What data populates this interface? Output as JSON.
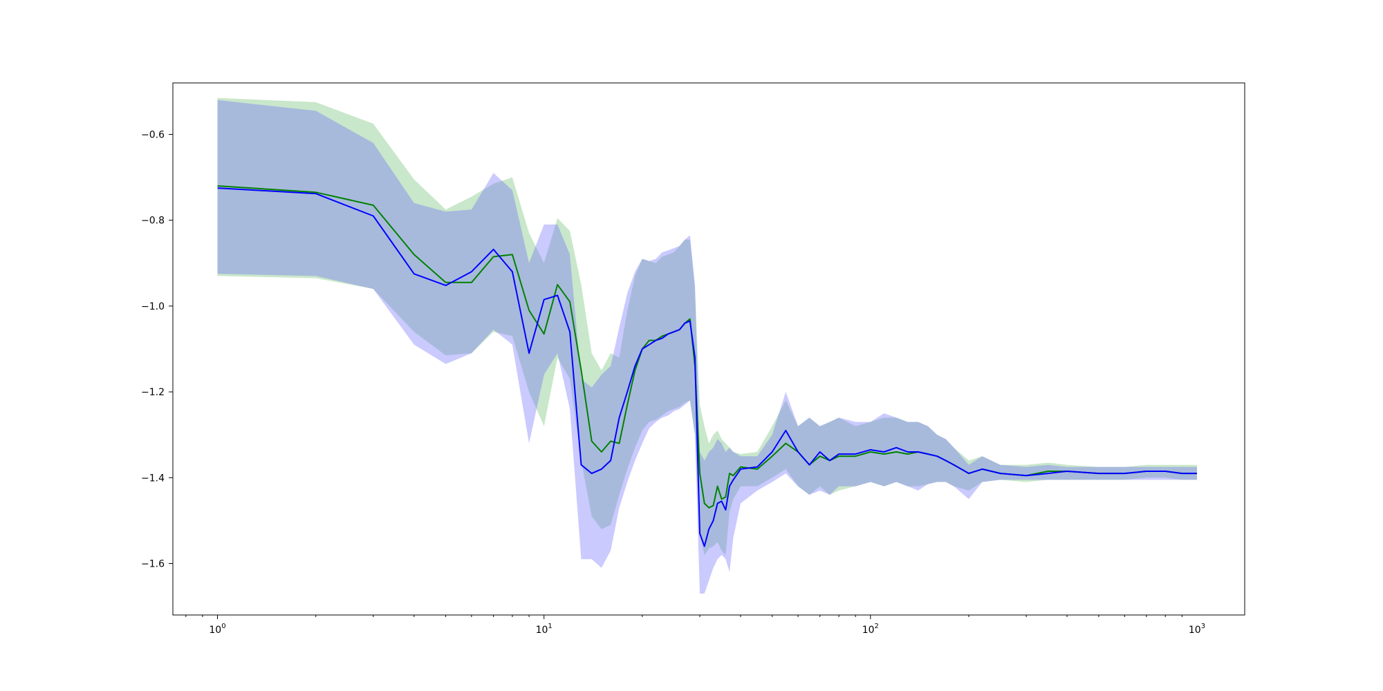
{
  "chart_data": {
    "type": "line",
    "title": "",
    "xlabel": "",
    "ylabel": "",
    "xscale": "log",
    "xlim": [
      0.73,
      1400
    ],
    "ylim": [
      -1.72,
      -0.48
    ],
    "grid": false,
    "legend": "none",
    "x_ticks": [
      {
        "value": 1,
        "base": "10",
        "exp": "0"
      },
      {
        "value": 10,
        "base": "10",
        "exp": "1"
      },
      {
        "value": 100,
        "base": "10",
        "exp": "2"
      },
      {
        "value": 1000,
        "base": "10",
        "exp": "3"
      }
    ],
    "y_ticks": [
      {
        "value": -0.6,
        "label": "−0.6"
      },
      {
        "value": -0.8,
        "label": "−0.8"
      },
      {
        "value": -1.0,
        "label": "−1.0"
      },
      {
        "value": -1.2,
        "label": "−1.2"
      },
      {
        "value": -1.4,
        "label": "−1.4"
      },
      {
        "value": -1.6,
        "label": "−1.6"
      }
    ],
    "series": [
      {
        "color": "#008000",
        "band_color": "#4caf50",
        "band_opacity": 0.3,
        "x": [
          1,
          2,
          3,
          4,
          5,
          6,
          7,
          8,
          9,
          10,
          11,
          12,
          13,
          14,
          15,
          16,
          17,
          18,
          19,
          20,
          21,
          22,
          23,
          24,
          25,
          26,
          27,
          28,
          29,
          30,
          31,
          32,
          33,
          34,
          35,
          36,
          37,
          38,
          40,
          45,
          50,
          55,
          60,
          65,
          70,
          75,
          80,
          90,
          100,
          110,
          120,
          130,
          140,
          150,
          160,
          170,
          180,
          200,
          220,
          250,
          300,
          350,
          400,
          500,
          600,
          700,
          800,
          900,
          1000
        ],
        "y": [
          -0.72,
          -0.735,
          -0.765,
          -0.88,
          -0.945,
          -0.945,
          -0.885,
          -0.88,
          -1.01,
          -1.065,
          -0.95,
          -0.99,
          -1.15,
          -1.315,
          -1.34,
          -1.315,
          -1.32,
          -1.23,
          -1.15,
          -1.1,
          -1.08,
          -1.08,
          -1.07,
          -1.065,
          -1.06,
          -1.055,
          -1.04,
          -1.03,
          -1.14,
          -1.39,
          -1.46,
          -1.47,
          -1.465,
          -1.42,
          -1.45,
          -1.445,
          -1.39,
          -1.395,
          -1.375,
          -1.38,
          -1.35,
          -1.32,
          -1.34,
          -1.37,
          -1.35,
          -1.36,
          -1.35,
          -1.35,
          -1.34,
          -1.345,
          -1.34,
          -1.345,
          -1.34,
          -1.345,
          -1.35,
          -1.36,
          -1.37,
          -1.39,
          -1.38,
          -1.39,
          -1.395,
          -1.385,
          -1.385,
          -1.39,
          -1.39,
          -1.385,
          -1.385,
          -1.39,
          -1.39
        ],
        "upper": [
          -0.515,
          -0.525,
          -0.575,
          -0.705,
          -0.775,
          -0.745,
          -0.715,
          -0.7,
          -0.83,
          -0.9,
          -0.795,
          -0.825,
          -0.95,
          -1.11,
          -1.15,
          -1.11,
          -1.12,
          -1.01,
          -0.93,
          -0.89,
          -0.895,
          -0.9,
          -0.885,
          -0.88,
          -0.875,
          -0.86,
          -0.845,
          -0.845,
          -0.96,
          -1.23,
          -1.28,
          -1.32,
          -1.3,
          -1.29,
          -1.31,
          -1.32,
          -1.33,
          -1.34,
          -1.345,
          -1.34,
          -1.28,
          -1.22,
          -1.28,
          -1.26,
          -1.28,
          -1.27,
          -1.26,
          -1.28,
          -1.27,
          -1.26,
          -1.26,
          -1.27,
          -1.27,
          -1.28,
          -1.3,
          -1.31,
          -1.33,
          -1.36,
          -1.35,
          -1.37,
          -1.37,
          -1.365,
          -1.37,
          -1.375,
          -1.375,
          -1.37,
          -1.37,
          -1.37,
          -1.37
        ],
        "lower": [
          -0.93,
          -0.935,
          -0.96,
          -1.06,
          -1.115,
          -1.11,
          -1.06,
          -1.07,
          -1.2,
          -1.28,
          -1.12,
          -1.17,
          -1.36,
          -1.49,
          -1.52,
          -1.51,
          -1.44,
          -1.38,
          -1.33,
          -1.29,
          -1.27,
          -1.265,
          -1.255,
          -1.245,
          -1.24,
          -1.235,
          -1.225,
          -1.22,
          -1.3,
          -1.53,
          -1.58,
          -1.565,
          -1.56,
          -1.55,
          -1.57,
          -1.58,
          -1.48,
          -1.45,
          -1.42,
          -1.42,
          -1.4,
          -1.38,
          -1.42,
          -1.44,
          -1.42,
          -1.44,
          -1.43,
          -1.42,
          -1.41,
          -1.42,
          -1.41,
          -1.42,
          -1.42,
          -1.415,
          -1.41,
          -1.41,
          -1.42,
          -1.43,
          -1.41,
          -1.405,
          -1.41,
          -1.405,
          -1.405,
          -1.405,
          -1.405,
          -1.4,
          -1.4,
          -1.405,
          -1.405
        ]
      },
      {
        "color": "#0000ff",
        "band_color": "#6666ff",
        "band_opacity": 0.35,
        "x": [
          1,
          2,
          3,
          4,
          5,
          6,
          7,
          8,
          9,
          10,
          11,
          12,
          13,
          14,
          15,
          16,
          17,
          18,
          19,
          20,
          21,
          22,
          23,
          24,
          25,
          26,
          27,
          28,
          29,
          30,
          31,
          32,
          33,
          34,
          35,
          36,
          37,
          38,
          40,
          45,
          50,
          55,
          60,
          65,
          70,
          75,
          80,
          90,
          100,
          110,
          120,
          130,
          140,
          150,
          160,
          170,
          180,
          200,
          220,
          250,
          300,
          350,
          400,
          500,
          600,
          700,
          800,
          900,
          1000
        ],
        "y": [
          -0.725,
          -0.738,
          -0.79,
          -0.925,
          -0.952,
          -0.92,
          -0.868,
          -0.92,
          -1.11,
          -0.985,
          -0.975,
          -1.06,
          -1.37,
          -1.39,
          -1.38,
          -1.36,
          -1.26,
          -1.2,
          -1.14,
          -1.1,
          -1.09,
          -1.08,
          -1.075,
          -1.065,
          -1.06,
          -1.055,
          -1.04,
          -1.035,
          -1.12,
          -1.53,
          -1.56,
          -1.52,
          -1.5,
          -1.46,
          -1.455,
          -1.475,
          -1.42,
          -1.405,
          -1.38,
          -1.375,
          -1.34,
          -1.29,
          -1.34,
          -1.37,
          -1.34,
          -1.36,
          -1.345,
          -1.345,
          -1.335,
          -1.34,
          -1.33,
          -1.34,
          -1.34,
          -1.345,
          -1.35,
          -1.36,
          -1.37,
          -1.39,
          -1.38,
          -1.39,
          -1.395,
          -1.39,
          -1.385,
          -1.39,
          -1.39,
          -1.385,
          -1.385,
          -1.39,
          -1.39
        ],
        "upper": [
          -0.52,
          -0.545,
          -0.62,
          -0.76,
          -0.78,
          -0.775,
          -0.69,
          -0.73,
          -0.9,
          -0.81,
          -0.81,
          -0.88,
          -1.17,
          -1.19,
          -1.16,
          -1.14,
          -1.05,
          -0.97,
          -0.92,
          -0.89,
          -0.895,
          -0.89,
          -0.875,
          -0.87,
          -0.865,
          -0.86,
          -0.845,
          -0.835,
          -0.95,
          -1.34,
          -1.36,
          -1.34,
          -1.33,
          -1.31,
          -1.32,
          -1.34,
          -1.33,
          -1.34,
          -1.35,
          -1.35,
          -1.3,
          -1.2,
          -1.28,
          -1.26,
          -1.28,
          -1.27,
          -1.26,
          -1.27,
          -1.27,
          -1.25,
          -1.26,
          -1.27,
          -1.27,
          -1.28,
          -1.3,
          -1.31,
          -1.33,
          -1.37,
          -1.35,
          -1.37,
          -1.375,
          -1.37,
          -1.375,
          -1.375,
          -1.375,
          -1.375,
          -1.375,
          -1.375,
          -1.375
        ],
        "lower": [
          -0.925,
          -0.93,
          -0.96,
          -1.09,
          -1.135,
          -1.11,
          -1.055,
          -1.09,
          -1.32,
          -1.16,
          -1.11,
          -1.24,
          -1.59,
          -1.59,
          -1.61,
          -1.57,
          -1.47,
          -1.41,
          -1.36,
          -1.32,
          -1.285,
          -1.27,
          -1.26,
          -1.255,
          -1.245,
          -1.24,
          -1.23,
          -1.22,
          -1.3,
          -1.67,
          -1.67,
          -1.64,
          -1.61,
          -1.59,
          -1.58,
          -1.59,
          -1.62,
          -1.54,
          -1.46,
          -1.43,
          -1.41,
          -1.39,
          -1.42,
          -1.44,
          -1.43,
          -1.44,
          -1.42,
          -1.42,
          -1.41,
          -1.42,
          -1.41,
          -1.42,
          -1.43,
          -1.415,
          -1.41,
          -1.41,
          -1.42,
          -1.45,
          -1.41,
          -1.405,
          -1.405,
          -1.405,
          -1.405,
          -1.405,
          -1.405,
          -1.405,
          -1.405,
          -1.405,
          -1.405
        ]
      }
    ]
  }
}
